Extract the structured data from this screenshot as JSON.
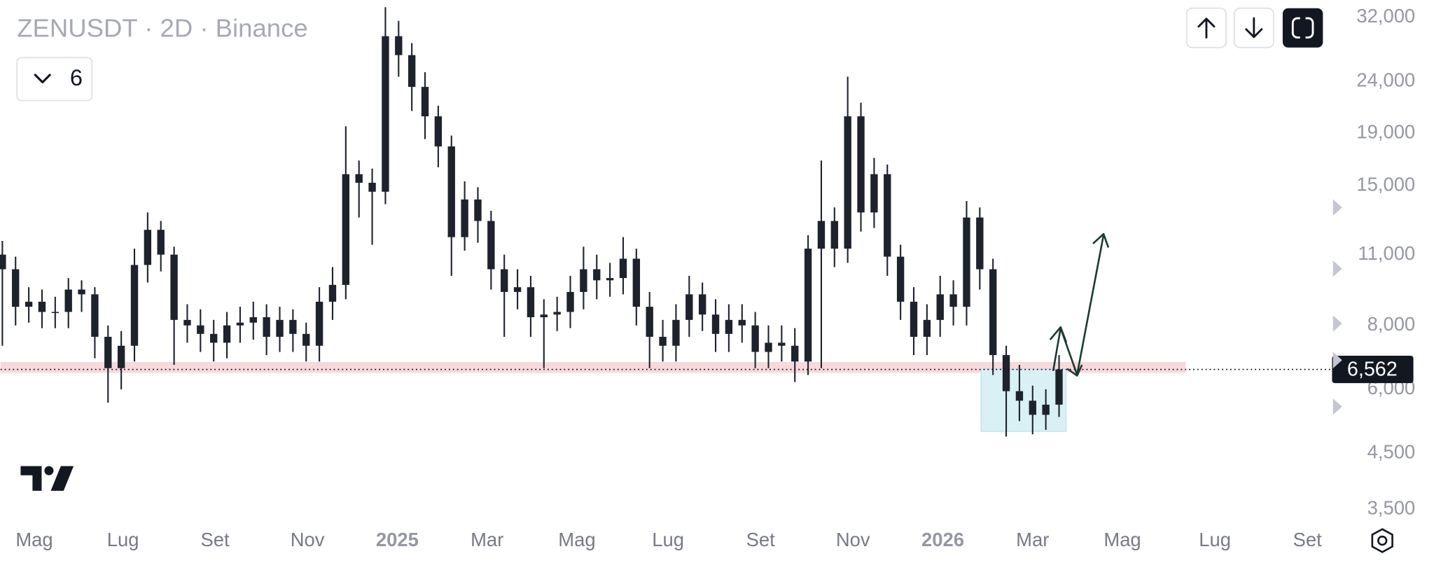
{
  "chart_data": {
    "type": "candlestick",
    "title": "ZENUSDT · 2D · Binance",
    "indicators_button": "6",
    "yscale": "log",
    "grid": false,
    "color": "#1e222d",
    "xlim": [
      -0.14,
      100.6
    ],
    "ylim": [
      3318,
      34600
    ],
    "xticks": [
      {
        "value": 2.42,
        "label": "Mag"
      },
      {
        "value": 9.13,
        "label": "Lug"
      },
      {
        "value": 16.1,
        "label": "Set"
      },
      {
        "value": 23.1,
        "label": "Nov"
      },
      {
        "value": 29.9,
        "label": "2025"
      },
      {
        "value": 36.7,
        "label": "Mar"
      },
      {
        "value": 43.5,
        "label": "Mag"
      },
      {
        "value": 50.4,
        "label": "Lug"
      },
      {
        "value": 57.4,
        "label": "Set"
      },
      {
        "value": 64.4,
        "label": "Nov"
      },
      {
        "value": 71.2,
        "label": "2026"
      },
      {
        "value": 78.0,
        "label": "Mar"
      },
      {
        "value": 84.8,
        "label": "Mag"
      },
      {
        "value": 91.8,
        "label": "Lug"
      },
      {
        "value": 98.8,
        "label": "Set"
      }
    ],
    "yticks": [
      {
        "value": 3500,
        "label": "3,500"
      },
      {
        "value": 4500,
        "label": "4,500"
      },
      {
        "value": 6000,
        "label": "6,000"
      },
      {
        "value": 8000,
        "label": "8,000"
      },
      {
        "value": 11000,
        "label": "11,000"
      },
      {
        "value": 15000,
        "label": "15,000"
      },
      {
        "value": 19000,
        "label": "19,000"
      },
      {
        "value": 24000,
        "label": "24,000"
      },
      {
        "value": 32000,
        "label": "32,000"
      }
    ],
    "last_price": {
      "value": 6562,
      "label": "6,562"
    },
    "open": [
      11000,
      10300,
      8700,
      8900,
      8500,
      8500,
      9400,
      9200,
      7600,
      6600,
      7300,
      10500,
      12300,
      11000,
      8200,
      8000,
      7700,
      7400,
      8000,
      8100,
      8300,
      7600,
      8200,
      7700,
      7300,
      8900,
      9600,
      15800,
      15200,
      14600,
      29400,
      27000,
      23400,
      20500,
      17900,
      11900,
      14100,
      12800,
      10300,
      9300,
      9500,
      8300,
      8400,
      8500,
      9300,
      10300,
      9800,
      9900,
      10800,
      8700,
      7600,
      7300,
      8200,
      9200,
      8400,
      7700,
      8200,
      8000,
      7100,
      7400,
      7300,
      6800,
      11300,
      12800,
      11300,
      20500,
      13300,
      15800,
      10900,
      8900,
      7600,
      8200,
      9200,
      8700,
      13000,
      10300,
      7000,
      5950,
      5700,
      5350,
      5600
    ],
    "high": [
      11700,
      10900,
      9500,
      9400,
      9100,
      9900,
      9800,
      9500,
      8000,
      7800,
      11300,
      13300,
      12800,
      11400,
      8800,
      8600,
      8200,
      8500,
      8700,
      8900,
      8800,
      8700,
      8600,
      8100,
      9500,
      10400,
      19600,
      16800,
      16200,
      33500,
      31500,
      28500,
      25000,
      21500,
      18800,
      15300,
      14900,
      13400,
      11000,
      10300,
      10000,
      9000,
      9100,
      10000,
      11400,
      11000,
      10600,
      11900,
      11300,
      9300,
      8200,
      8800,
      10000,
      9700,
      9000,
      8800,
      8800,
      8500,
      8000,
      8000,
      7900,
      12000,
      16800,
      13600,
      24500,
      21800,
      17000,
      16500,
      11500,
      9500,
      8800,
      10000,
      9800,
      14000,
      13600,
      10800,
      7300,
      6700,
      6100,
      6000,
      7000
    ],
    "low": [
      7300,
      8000,
      8100,
      7900,
      7900,
      7900,
      8500,
      6900,
      5650,
      6000,
      6800,
      9700,
      10200,
      6700,
      7400,
      7100,
      6800,
      6900,
      7400,
      7500,
      7000,
      7100,
      7100,
      6800,
      6800,
      8200,
      9000,
      13000,
      11500,
      13800,
      24500,
      21000,
      18500,
      16300,
      10000,
      11200,
      11600,
      9400,
      7600,
      8600,
      7600,
      6600,
      7800,
      7900,
      8600,
      9000,
      9100,
      9200,
      8000,
      6600,
      6800,
      6800,
      7600,
      7800,
      7100,
      7100,
      7400,
      6600,
      6600,
      6800,
      6200,
      6400,
      6600,
      10400,
      10600,
      12200,
      12400,
      10000,
      8200,
      7000,
      7000,
      7600,
      8000,
      8000,
      9400,
      6400,
      4850,
      5200,
      4900,
      5000,
      5300
    ],
    "close": [
      10300,
      8700,
      8900,
      8500,
      8500,
      9400,
      9200,
      7600,
      6600,
      7300,
      10500,
      12300,
      11000,
      8200,
      8000,
      7700,
      7400,
      8000,
      8100,
      8300,
      7600,
      8200,
      7700,
      7300,
      8900,
      9600,
      15800,
      15200,
      14600,
      29400,
      27000,
      23400,
      20500,
      17900,
      11900,
      14100,
      12800,
      10300,
      9300,
      9500,
      8300,
      8400,
      8500,
      9300,
      10300,
      9800,
      9900,
      10800,
      8700,
      7600,
      7300,
      8200,
      9200,
      8400,
      7700,
      8200,
      8000,
      7100,
      7400,
      7300,
      6800,
      11300,
      12800,
      11300,
      20500,
      13300,
      15800,
      10900,
      8900,
      7600,
      8200,
      9200,
      8700,
      13000,
      10300,
      7000,
      5950,
      5700,
      5350,
      5600,
      6562
    ]
  }
}
